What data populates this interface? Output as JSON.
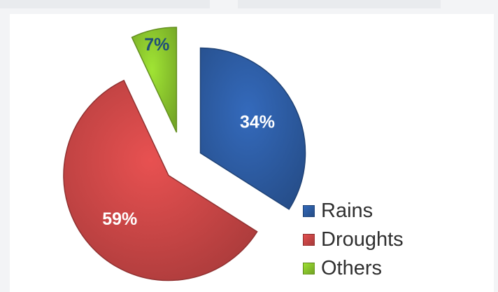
{
  "chart_data": {
    "type": "pie",
    "title": "",
    "exploded": true,
    "slices": [
      {
        "label": "Rains",
        "value": 34,
        "display": "34%",
        "color": "#2e5fa8",
        "label_color": "#ffffff"
      },
      {
        "label": "Droughts",
        "value": 59,
        "display": "59%",
        "color": "#cf4848",
        "label_color": "#ffffff"
      },
      {
        "label": "Others",
        "value": 7,
        "display": "7%",
        "color": "#8fcc2e",
        "label_color": "#1f4e79"
      }
    ],
    "legend": {
      "position": "bottom-right",
      "items": [
        "Rains",
        "Droughts",
        "Others"
      ]
    }
  }
}
